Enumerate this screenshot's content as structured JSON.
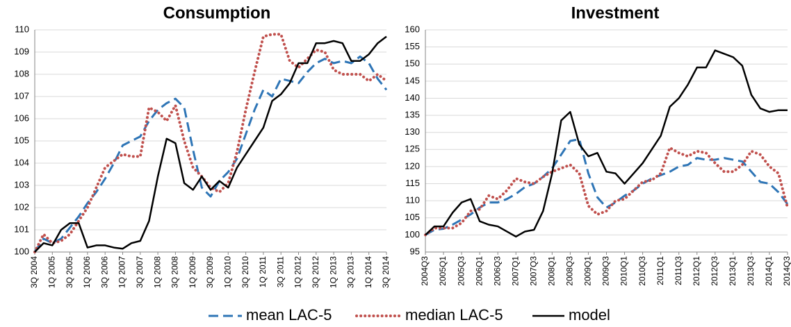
{
  "chart_data": [
    {
      "type": "line",
      "title": "Consumption",
      "categories": [
        "3Q 2004",
        null,
        "1Q 2005",
        null,
        "3Q 2005",
        null,
        "1Q 2006",
        null,
        "3Q 2006",
        null,
        "1Q 2007",
        null,
        "3Q 2007",
        null,
        "1Q 2008",
        null,
        "3Q 2008",
        null,
        "1Q 2009",
        null,
        "3Q 2009",
        null,
        "1Q 2010",
        null,
        "3Q 2010",
        null,
        "1Q 2011",
        null,
        "3Q 2011",
        null,
        "1Q 2012",
        null,
        "3Q 2012",
        null,
        "1Q 2013",
        null,
        "3Q 2013",
        null,
        "1Q 2014",
        null,
        "3Q 2014"
      ],
      "ylim": [
        100,
        110
      ],
      "yticks": [
        100,
        101,
        102,
        103,
        104,
        105,
        106,
        107,
        108,
        109,
        110
      ],
      "grid": true,
      "series": [
        {
          "name": "mean LAC-5",
          "color": "#2e75b6",
          "style": "dashed",
          "values": [
            100,
            100.6,
            100.4,
            100.6,
            101.1,
            101.6,
            102.2,
            102.7,
            103.3,
            104.0,
            104.8,
            105.0,
            105.2,
            105.9,
            106.4,
            106.7,
            106.9,
            106.5,
            104.6,
            102.9,
            102.5,
            103.2,
            103.6,
            104.2,
            105.3,
            106.4,
            107.3,
            107.0,
            107.8,
            107.7,
            107.6,
            108.1,
            108.5,
            108.7,
            108.5,
            108.6,
            108.5,
            108.8,
            108.5,
            107.8,
            107.3
          ]
        },
        {
          "name": "median LAC-5",
          "color": "#c0504d",
          "style": "dotted",
          "values": [
            100,
            100.8,
            100.4,
            100.5,
            100.8,
            101.4,
            102.0,
            102.9,
            103.8,
            104.1,
            104.4,
            104.3,
            104.3,
            106.5,
            106.3,
            105.9,
            106.6,
            105.0,
            103.8,
            103.4,
            102.9,
            102.7,
            103.1,
            104.5,
            106.4,
            108.1,
            109.7,
            109.8,
            109.8,
            108.6,
            108.3,
            108.7,
            109.1,
            109.0,
            108.2,
            108.0,
            108.0,
            108.0,
            107.7,
            108.0,
            107.7
          ]
        },
        {
          "name": "model",
          "color": "#000000",
          "style": "solid",
          "values": [
            100,
            100.4,
            100.3,
            101.0,
            101.3,
            101.3,
            100.2,
            100.3,
            100.3,
            100.2,
            100.15,
            100.4,
            100.5,
            101.4,
            103.4,
            105.1,
            104.9,
            103.1,
            102.8,
            103.4,
            102.8,
            103.2,
            102.9,
            103.8,
            104.4,
            105.0,
            105.6,
            106.8,
            107.1,
            107.6,
            108.5,
            108.5,
            109.4,
            109.4,
            109.5,
            109.4,
            108.6,
            108.6,
            108.9,
            109.4,
            109.7
          ]
        }
      ]
    },
    {
      "type": "line",
      "title": "Investment",
      "categories": [
        "2004Q3",
        null,
        "2005Q1",
        null,
        "2005Q3",
        null,
        "2006Q1",
        null,
        "2006Q3",
        null,
        "2007Q1",
        null,
        "2007Q3",
        null,
        "2008Q1",
        null,
        "2008Q3",
        null,
        "2009Q1",
        null,
        "2009Q3",
        null,
        "2010Q1",
        null,
        "2010Q3",
        null,
        "2011Q1",
        null,
        "2011Q3",
        null,
        "2012Q1",
        null,
        "2012Q3",
        null,
        "2013Q1",
        null,
        "2013Q3",
        null,
        "2014Q1",
        null,
        "2014Q3"
      ],
      "ylim": [
        95,
        160
      ],
      "yticks": [
        95,
        100,
        105,
        110,
        115,
        120,
        125,
        130,
        135,
        140,
        145,
        150,
        155,
        160
      ],
      "grid": true,
      "series": [
        {
          "color": "#2e75b6",
          "style": "dashed",
          "values": [
            100,
            101.5,
            101.8,
            103,
            104.5,
            106,
            108,
            109.5,
            109.5,
            110.5,
            112,
            114,
            115,
            117,
            119.5,
            123.5,
            127.5,
            128,
            118,
            111,
            108,
            109.5,
            111.5,
            113,
            115,
            116.5,
            117.5,
            118.5,
            120,
            120.5,
            122.5,
            122,
            122,
            122.5,
            122,
            121.5,
            118.5,
            115.5,
            115,
            112.5,
            109
          ]
        },
        {
          "color": "#c0504d",
          "style": "dotted",
          "values": [
            100,
            102,
            102,
            102,
            103.5,
            107,
            107.5,
            111.5,
            110.5,
            113,
            116.5,
            115.5,
            115,
            117,
            118.5,
            119.5,
            120.5,
            118,
            108.5,
            106,
            107,
            110,
            110.5,
            113,
            115.5,
            116,
            118,
            125.5,
            124,
            123,
            124.5,
            124,
            121,
            118.5,
            118.5,
            120.5,
            124.5,
            123.5,
            120,
            118,
            108
          ]
        },
        {
          "color": "#000000",
          "style": "solid",
          "values": [
            100,
            102.5,
            102.5,
            106.5,
            109.5,
            110.5,
            104,
            103,
            102.5,
            101,
            99.5,
            101,
            101.5,
            107,
            118,
            133.5,
            136,
            126.5,
            123,
            124,
            118.5,
            118,
            115,
            118,
            121,
            125,
            129,
            137.5,
            140,
            144,
            149,
            149,
            154,
            153,
            152,
            149.5,
            141,
            137,
            136,
            136.5,
            136.5
          ]
        }
      ]
    }
  ]
}
